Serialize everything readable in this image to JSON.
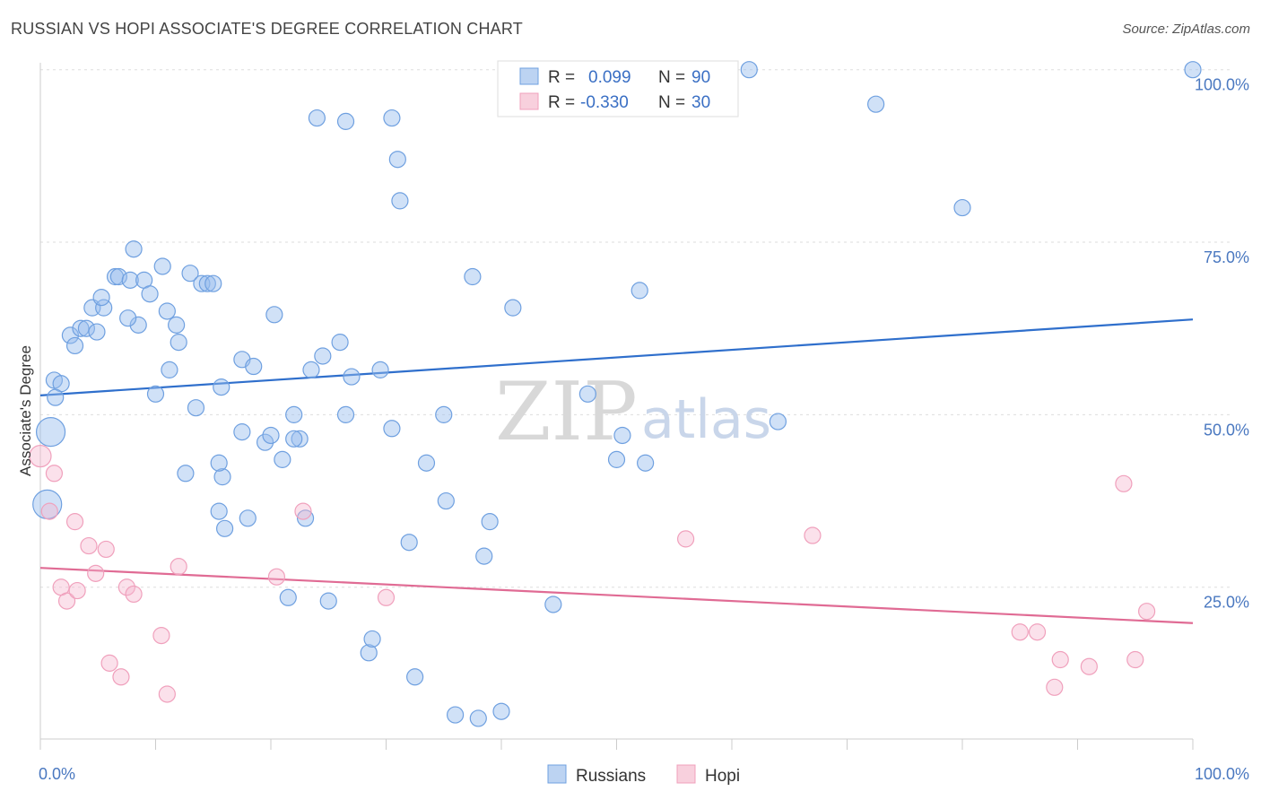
{
  "title": "RUSSIAN VS HOPI ASSOCIATE'S DEGREE CORRELATION CHART",
  "source": "Source: ZipAtlas.com",
  "watermark": {
    "part1": "ZIP",
    "part2": "atlas"
  },
  "colors": {
    "russians": "#6fa0e0",
    "hopi": "#f0a0bc",
    "russians_line": "#2f6fcc",
    "hopi_line": "#e06b94",
    "tick": "#4a78c0"
  },
  "legend": {
    "rows": [
      {
        "r_label": "R =",
        "r_value": "0.099",
        "n_label": "N =",
        "n_value": "90"
      },
      {
        "r_label": "R =",
        "r_value": "-0.330",
        "n_label": "N =",
        "n_value": "30"
      }
    ]
  },
  "chart_data": {
    "type": "scatter",
    "ylabel": "Associate's Degree",
    "xlabel": "",
    "xlim": [
      0,
      100
    ],
    "ylim": [
      3,
      101
    ],
    "x_tick_labels": [
      {
        "value": 0,
        "label": "0.0%"
      },
      {
        "value": 100,
        "label": "100.0%"
      }
    ],
    "y_tick_labels": [
      {
        "value": 100,
        "label": "100.0%"
      },
      {
        "value": 75,
        "label": "75.0%"
      },
      {
        "value": 50,
        "label": "50.0%"
      },
      {
        "value": 25,
        "label": "25.0%"
      }
    ],
    "grid": true,
    "legend_position": "bottom-center",
    "series": [
      {
        "name": "Russians",
        "trend": {
          "x": [
            0,
            100
          ],
          "y": [
            52.8,
            63.8
          ]
        },
        "points": [
          [
            1.2,
            55.0
          ],
          [
            1.8,
            54.5
          ],
          [
            1.3,
            52.5
          ],
          [
            0.9,
            47.5
          ],
          [
            0.6,
            37.0
          ],
          [
            2.6,
            61.5
          ],
          [
            3.0,
            60.0
          ],
          [
            3.5,
            62.5
          ],
          [
            4.0,
            62.5
          ],
          [
            4.9,
            62.0
          ],
          [
            4.5,
            65.5
          ],
          [
            5.5,
            65.5
          ],
          [
            5.3,
            67.0
          ],
          [
            6.5,
            70.0
          ],
          [
            6.8,
            70.0
          ],
          [
            7.8,
            69.5
          ],
          [
            8.5,
            63.0
          ],
          [
            9.0,
            69.5
          ],
          [
            7.6,
            64.0
          ],
          [
            9.5,
            67.5
          ],
          [
            8.1,
            74.0
          ],
          [
            10.6,
            71.5
          ],
          [
            11.0,
            65.0
          ],
          [
            11.8,
            63.0
          ],
          [
            12.0,
            60.5
          ],
          [
            11.2,
            56.5
          ],
          [
            10.0,
            53.0
          ],
          [
            13.0,
            70.5
          ],
          [
            14.0,
            69.0
          ],
          [
            14.5,
            69.0
          ],
          [
            15.0,
            69.0
          ],
          [
            13.5,
            51.0
          ],
          [
            12.6,
            41.5
          ],
          [
            15.8,
            41.0
          ],
          [
            15.5,
            43.0
          ],
          [
            15.7,
            54.0
          ],
          [
            17.5,
            58.0
          ],
          [
            18.5,
            57.0
          ],
          [
            20.3,
            64.5
          ],
          [
            17.5,
            47.5
          ],
          [
            19.5,
            46.0
          ],
          [
            20.0,
            47.0
          ],
          [
            21.0,
            43.5
          ],
          [
            21.5,
            23.5
          ],
          [
            22.0,
            50.0
          ],
          [
            22.5,
            46.5
          ],
          [
            23.0,
            35.0
          ],
          [
            23.5,
            56.5
          ],
          [
            24.5,
            58.5
          ],
          [
            25.0,
            23.0
          ],
          [
            26.0,
            60.5
          ],
          [
            26.5,
            50.0
          ],
          [
            27.0,
            55.5
          ],
          [
            28.5,
            15.5
          ],
          [
            28.8,
            17.5
          ],
          [
            29.5,
            56.5
          ],
          [
            30.5,
            93.0
          ],
          [
            31.0,
            87.0
          ],
          [
            31.2,
            81.0
          ],
          [
            30.5,
            48.0
          ],
          [
            32.0,
            31.5
          ],
          [
            32.5,
            12.0
          ],
          [
            33.5,
            43.0
          ],
          [
            35.0,
            50.0
          ],
          [
            35.2,
            37.5
          ],
          [
            36.0,
            6.5
          ],
          [
            38.0,
            6.0
          ],
          [
            38.5,
            29.5
          ],
          [
            39.0,
            34.5
          ],
          [
            40.0,
            7.0
          ],
          [
            41.0,
            65.5
          ],
          [
            37.5,
            70.0
          ],
          [
            44.5,
            22.5
          ],
          [
            47.5,
            53.0
          ],
          [
            50.5,
            47.0
          ],
          [
            50.0,
            43.5
          ],
          [
            52.0,
            68.0
          ],
          [
            52.5,
            43.0
          ],
          [
            57.0,
            100.0
          ],
          [
            61.5,
            100.0
          ],
          [
            64.0,
            49.0
          ],
          [
            72.5,
            95.0
          ],
          [
            80.0,
            80.0
          ],
          [
            100.0,
            100.0
          ],
          [
            24.0,
            93.0
          ],
          [
            26.5,
            92.5
          ],
          [
            22.0,
            46.5
          ],
          [
            18.0,
            35.0
          ],
          [
            16.0,
            33.5
          ],
          [
            15.5,
            36.0
          ]
        ]
      },
      {
        "name": "Hopi",
        "trend": {
          "x": [
            0,
            100
          ],
          "y": [
            27.8,
            19.8
          ]
        },
        "points": [
          [
            0.0,
            44.0
          ],
          [
            0.8,
            36.0
          ],
          [
            1.2,
            41.5
          ],
          [
            1.8,
            25.0
          ],
          [
            2.3,
            23.0
          ],
          [
            3.0,
            34.5
          ],
          [
            3.2,
            24.5
          ],
          [
            4.2,
            31.0
          ],
          [
            4.8,
            27.0
          ],
          [
            5.7,
            30.5
          ],
          [
            6.0,
            14.0
          ],
          [
            7.0,
            12.0
          ],
          [
            7.5,
            25.0
          ],
          [
            8.1,
            24.0
          ],
          [
            10.5,
            18.0
          ],
          [
            11.0,
            9.5
          ],
          [
            12.0,
            28.0
          ],
          [
            20.5,
            26.5
          ],
          [
            22.8,
            36.0
          ],
          [
            30.0,
            23.5
          ],
          [
            56.0,
            32.0
          ],
          [
            67.0,
            32.5
          ],
          [
            85.0,
            18.5
          ],
          [
            86.5,
            18.5
          ],
          [
            88.0,
            10.5
          ],
          [
            88.5,
            14.5
          ],
          [
            91.0,
            13.5
          ],
          [
            94.0,
            40.0
          ],
          [
            95.0,
            14.5
          ],
          [
            96.0,
            21.5
          ]
        ]
      }
    ]
  }
}
